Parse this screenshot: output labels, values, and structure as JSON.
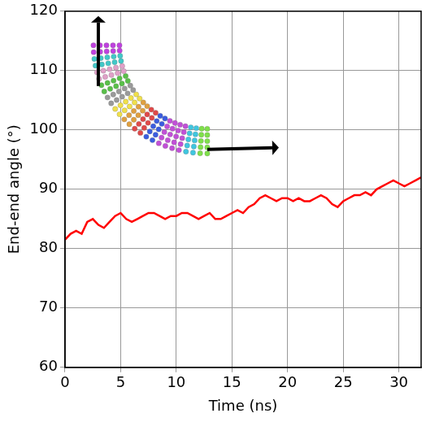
{
  "chart_data": {
    "type": "line",
    "x_label": "Time (ns)",
    "y_label": "End-end angle (°)",
    "x": [
      0,
      0.5,
      1,
      1.5,
      2,
      2.5,
      3,
      3.5,
      4,
      4.5,
      5,
      5.5,
      6,
      6.5,
      7,
      7.5,
      8,
      8.5,
      9,
      9.5,
      10,
      10.5,
      11,
      11.5,
      12,
      12.5,
      13,
      13.5,
      14,
      14.5,
      15,
      15.5,
      16,
      16.5,
      17,
      17.5,
      18,
      18.5,
      19,
      19.5,
      20,
      20.5,
      21,
      21.5,
      22,
      22.5,
      23,
      23.5,
      24,
      24.5,
      25,
      25.5,
      26,
      26.5,
      27,
      27.5,
      28,
      28.5,
      29,
      29.5,
      30,
      30.5,
      31,
      31.5,
      32
    ],
    "values": [
      81.5,
      82.5,
      83,
      82.5,
      84.5,
      85,
      84,
      83.5,
      84.5,
      85.5,
      86,
      85,
      84.5,
      85,
      85.5,
      86,
      86,
      85.5,
      85,
      85.5,
      85.5,
      86,
      86,
      85.5,
      85,
      85.5,
      86,
      85,
      85,
      85.5,
      86,
      86.5,
      86,
      87,
      87.5,
      88.5,
      89,
      88.5,
      88,
      88.5,
      88.5,
      88,
      88.5,
      88,
      88,
      88.5,
      89,
      88.5,
      87.5,
      87,
      88,
      88.5,
      89,
      89,
      89.5,
      89,
      90,
      90.5,
      91,
      91.5,
      91,
      90.5,
      91,
      91.5,
      92
    ],
    "color": "#ff0000",
    "xlim": [
      0,
      32
    ],
    "xticks": [
      0,
      5,
      10,
      15,
      20,
      25,
      30
    ],
    "ylim": [
      60,
      120
    ],
    "yticks": [
      60,
      70,
      80,
      90,
      100,
      110,
      120
    ],
    "grid": true
  }
}
